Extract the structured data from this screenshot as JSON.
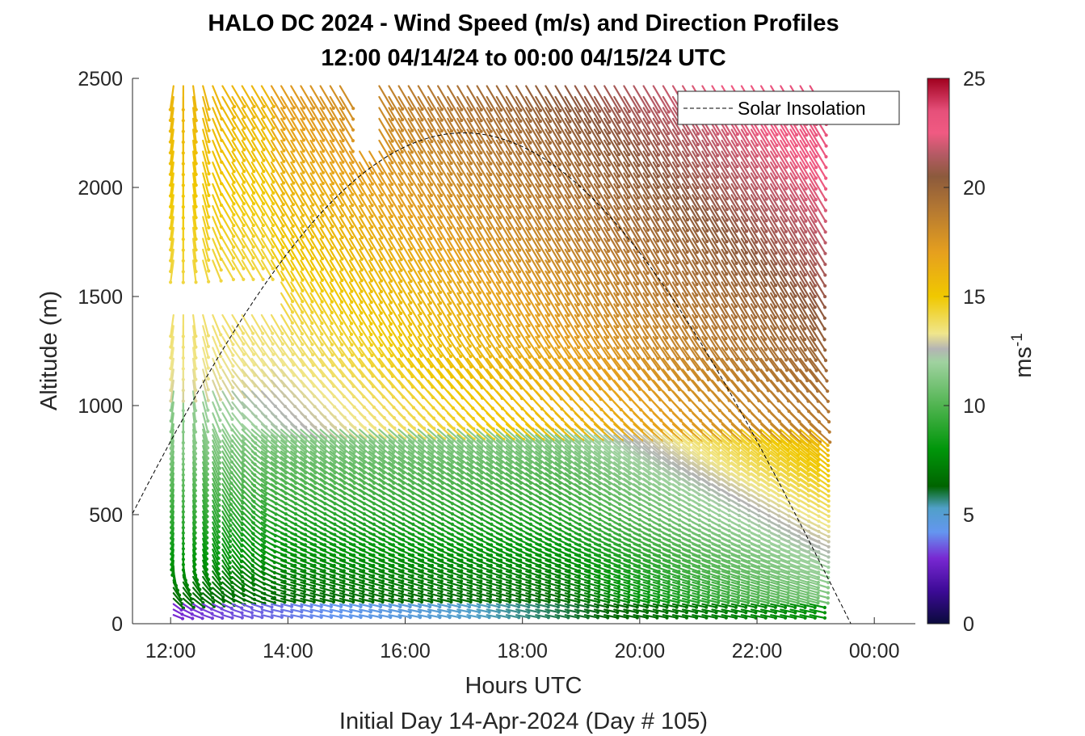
{
  "chart_data": {
    "type": "quiver",
    "title": "HALO DC 2024 - Wind Speed (m/s) and Direction Profiles",
    "subtitle": "12:00 04/14/24 to 00:00 04/15/24  UTC",
    "xlabel": "Hours UTC",
    "xlabel2": "Initial Day 14-Apr-2024 (Day # 105)",
    "ylabel": "Altitude (m)",
    "x_ticks": [
      "12:00",
      "14:00",
      "16:00",
      "18:00",
      "20:00",
      "22:00",
      "00:00"
    ],
    "x_tick_hours": [
      12,
      14,
      16,
      18,
      20,
      22,
      24
    ],
    "xlim_hours": [
      11.35,
      24.7
    ],
    "y_ticks": [
      0,
      500,
      1000,
      1500,
      2000,
      2500
    ],
    "ylim": [
      0,
      2500
    ],
    "legend": {
      "label": "Solar Insolation",
      "placement": "top-right"
    },
    "colorbar": {
      "label": "ms",
      "label_superscript": "-1",
      "ticks": [
        0,
        5,
        10,
        15,
        20,
        25
      ],
      "range": [
        0,
        25
      ],
      "stops": [
        {
          "v": 0,
          "c": "#0a0a3c"
        },
        {
          "v": 1.5,
          "c": "#3c0a96"
        },
        {
          "v": 3,
          "c": "#7828d2"
        },
        {
          "v": 4.2,
          "c": "#6496f0"
        },
        {
          "v": 5.3,
          "c": "#50a0c8"
        },
        {
          "v": 6.3,
          "c": "#006400"
        },
        {
          "v": 8,
          "c": "#00960a"
        },
        {
          "v": 10,
          "c": "#50b450"
        },
        {
          "v": 12,
          "c": "#a0d2a0"
        },
        {
          "v": 12.6,
          "c": "#b4b4b4"
        },
        {
          "v": 13.3,
          "c": "#f0e68c"
        },
        {
          "v": 15,
          "c": "#f0c800"
        },
        {
          "v": 17,
          "c": "#e6a01e"
        },
        {
          "v": 19,
          "c": "#b47832"
        },
        {
          "v": 20.5,
          "c": "#8c5a3c"
        },
        {
          "v": 21.5,
          "c": "#b45a64"
        },
        {
          "v": 22.5,
          "c": "#f05a82"
        },
        {
          "v": 23.5,
          "c": "#e6507a"
        },
        {
          "v": 25,
          "c": "#a0001e"
        }
      ]
    },
    "solar_insolation": {
      "sunrise_hour": 10.4,
      "sunset_hour": 23.6,
      "peak_altitude": 2250,
      "zero_until_hour": 24.6
    },
    "wind_field": {
      "start_hour": 12.05,
      "end_hour": 23.05,
      "step_hours": 0.167,
      "altitude_bottom": 40,
      "altitude_top": 2500,
      "speed_range_ms": [
        2,
        24
      ],
      "gap_hours": [
        [
          14.9,
          15.4
        ]
      ],
      "gap_altitude": [
        2200,
        2500
      ]
    }
  }
}
